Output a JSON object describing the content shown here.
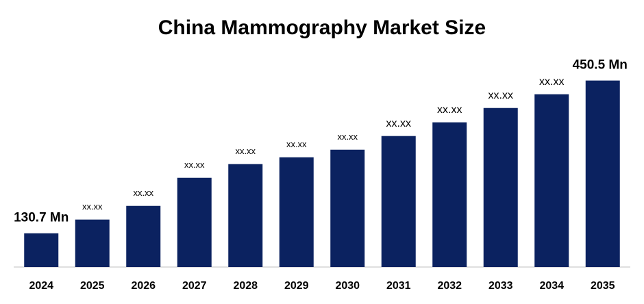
{
  "chart_data": {
    "type": "bar",
    "title": "China Mammography Market Size",
    "categories": [
      "2024",
      "2025",
      "2026",
      "2027",
      "2028",
      "2029",
      "2030",
      "2031",
      "2032",
      "2033",
      "2034",
      "2035"
    ],
    "values": [
      130.7,
      159.4,
      188,
      246.8,
      275.5,
      289.8,
      305.6,
      334.3,
      363,
      393,
      421.8,
      450.5
    ],
    "value_labels": [
      "130.7 Mn",
      "xx.xx",
      "xx.xx",
      "xx.xx",
      "xx.xx",
      "xx.xx",
      "xx.xx",
      "xx.xx",
      "xx.xx",
      "xx.xx",
      "xx.xx",
      "450.5 Mn"
    ],
    "color": "#0b2260",
    "ylim": [
      60,
      460
    ]
  }
}
